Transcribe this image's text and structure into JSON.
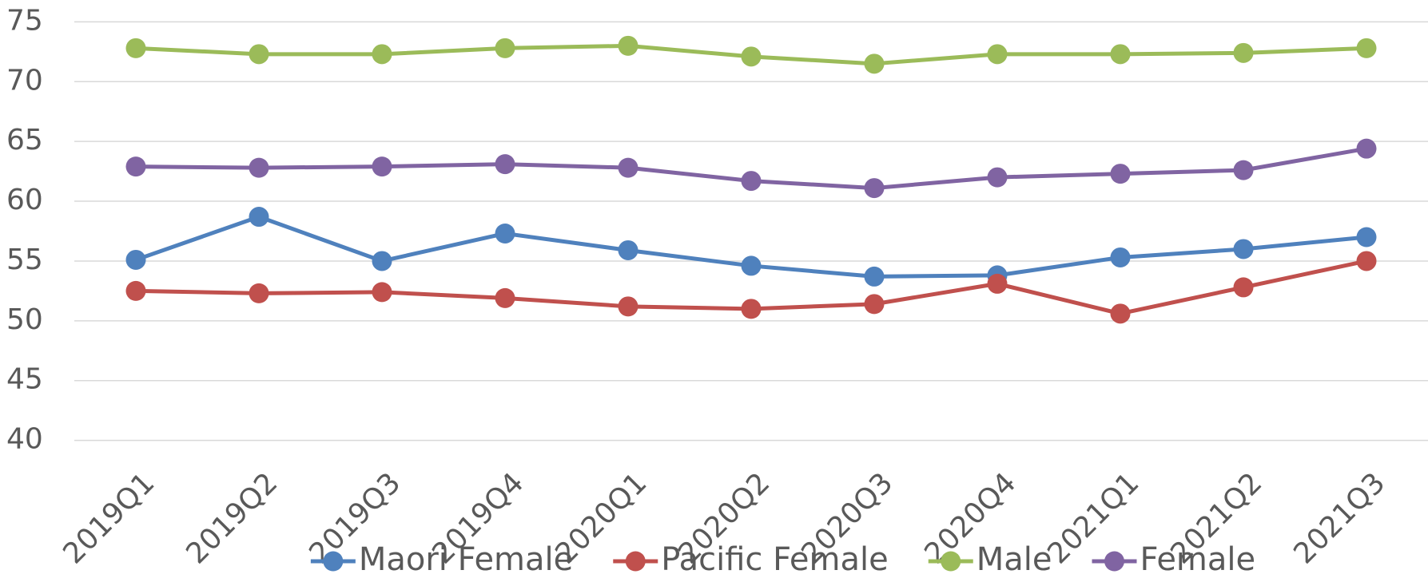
{
  "chart_data": {
    "type": "line",
    "categories": [
      "2019Q1",
      "2019Q2",
      "2019Q3",
      "2019Q4",
      "2020Q1",
      "2020Q2",
      "2020Q3",
      "2020Q4",
      "2021Q1",
      "2021Q2",
      "2021Q3"
    ],
    "series": [
      {
        "name": "Maori Female",
        "color": "#4f81bd",
        "values": [
          55.1,
          58.7,
          55.0,
          57.3,
          55.9,
          54.6,
          53.7,
          53.8,
          55.3,
          56.0,
          57.0
        ]
      },
      {
        "name": "Pacific Female",
        "color": "#c0504d",
        "values": [
          52.5,
          52.3,
          52.4,
          51.9,
          51.2,
          51.0,
          51.4,
          53.1,
          50.6,
          52.8,
          55.0
        ]
      },
      {
        "name": "Male",
        "color": "#9bbb59",
        "values": [
          72.8,
          72.3,
          72.3,
          72.8,
          73.0,
          72.1,
          71.5,
          72.3,
          72.3,
          72.4,
          72.8
        ]
      },
      {
        "name": "Female",
        "color": "#8064a2",
        "values": [
          62.9,
          62.8,
          62.9,
          63.1,
          62.8,
          61.7,
          61.1,
          62.0,
          62.3,
          62.6,
          64.4
        ]
      }
    ],
    "ylim": [
      40,
      75
    ],
    "yticks": [
      40,
      45,
      50,
      55,
      60,
      65,
      70,
      75
    ],
    "grid": true,
    "legend": "bottom"
  }
}
